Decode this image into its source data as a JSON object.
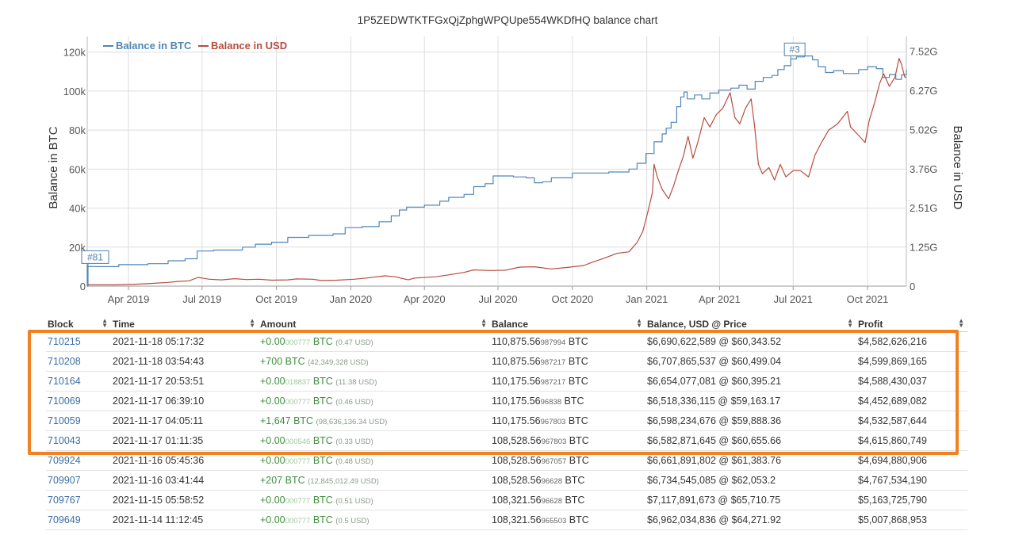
{
  "title": "1P5ZEDWTKTFGxQjZphgWPQUpe554WKDfHQ balance chart",
  "chart_data": {
    "type": "line",
    "title": "1P5ZEDWTKTFGxQjZphgWPQUpe554WKDfHQ balance chart",
    "legend": {
      "placement": "top-left",
      "btc_label": "Balance in BTC",
      "usd_label": "Balance in USD"
    },
    "x_ticks": [
      "Apr 2019",
      "Jul 2019",
      "Oct 2019",
      "Jan 2020",
      "Apr 2020",
      "Jul 2020",
      "Oct 2020",
      "Jan 2021",
      "Apr 2021",
      "Jul 2021",
      "Oct 2021"
    ],
    "x_range": [
      "2019-02-09",
      "2021-11-18"
    ],
    "y_left": {
      "label": "Balance in BTC",
      "range": [
        0,
        128000
      ],
      "ticks": [
        "0",
        "20k",
        "40k",
        "60k",
        "80k",
        "100k",
        "120k"
      ]
    },
    "y_right": {
      "label": "Balance in USD",
      "range": [
        0,
        8.0
      ],
      "unit": "G",
      "ticks": [
        "0",
        "1.25G",
        "2.51G",
        "3.76G",
        "5.02G",
        "6.27G",
        "7.52G"
      ]
    },
    "grid": true,
    "flags": [
      {
        "label": "#81",
        "date": "2019-02-10",
        "series": "btc"
      },
      {
        "label": "#3",
        "date": "2021-06-28",
        "series": "btc"
      }
    ],
    "series": [
      {
        "name": "Balance in BTC",
        "color": "#4f86b8",
        "axis": "left",
        "points": [
          [
            "2019-02-09",
            11000
          ],
          [
            "2019-02-09",
            0
          ],
          [
            "2019-02-10",
            0
          ],
          [
            "2019-02-10",
            10000
          ],
          [
            "2019-03-20",
            11000
          ],
          [
            "2019-04-25",
            11500
          ],
          [
            "2019-05-20",
            13000
          ],
          [
            "2019-06-10",
            14000
          ],
          [
            "2019-06-25",
            18000
          ],
          [
            "2019-07-15",
            18500
          ],
          [
            "2019-08-20",
            20000
          ],
          [
            "2019-09-05",
            21500
          ],
          [
            "2019-09-25",
            22500
          ],
          [
            "2019-10-15",
            25000
          ],
          [
            "2019-11-10",
            26000
          ],
          [
            "2019-12-10",
            26800
          ],
          [
            "2019-12-25",
            30000
          ],
          [
            "2020-01-15",
            30500
          ],
          [
            "2020-02-05",
            33000
          ],
          [
            "2020-02-20",
            36000
          ],
          [
            "2020-03-01",
            39000
          ],
          [
            "2020-03-10",
            40500
          ],
          [
            "2020-04-01",
            41500
          ],
          [
            "2020-04-20",
            43500
          ],
          [
            "2020-05-01",
            45500
          ],
          [
            "2020-05-20",
            47000
          ],
          [
            "2020-06-01",
            51000
          ],
          [
            "2020-06-15",
            52500
          ],
          [
            "2020-06-25",
            56500
          ],
          [
            "2020-07-20",
            56000
          ],
          [
            "2020-08-05",
            55500
          ],
          [
            "2020-08-15",
            53000
          ],
          [
            "2020-08-25",
            53500
          ],
          [
            "2020-09-05",
            55500
          ],
          [
            "2020-10-01",
            58000
          ],
          [
            "2020-11-15",
            58500
          ],
          [
            "2020-12-10",
            60000
          ],
          [
            "2020-12-20",
            63000
          ],
          [
            "2020-12-31",
            68000
          ],
          [
            "2021-01-10",
            74000
          ],
          [
            "2021-01-20",
            78000
          ],
          [
            "2021-01-25",
            81000
          ],
          [
            "2021-01-31",
            84000
          ],
          [
            "2021-02-07",
            92000
          ],
          [
            "2021-02-12",
            97000
          ],
          [
            "2021-02-16",
            99500
          ],
          [
            "2021-02-20",
            96000
          ],
          [
            "2021-03-01",
            98000
          ],
          [
            "2021-03-10",
            96000
          ],
          [
            "2021-03-20",
            99000
          ],
          [
            "2021-03-31",
            100500
          ],
          [
            "2021-04-15",
            101500
          ],
          [
            "2021-04-25",
            103000
          ],
          [
            "2021-05-05",
            101000
          ],
          [
            "2021-05-15",
            105000
          ],
          [
            "2021-05-25",
            107000
          ],
          [
            "2021-06-05",
            108000
          ],
          [
            "2021-06-12",
            111000
          ],
          [
            "2021-06-20",
            113000
          ],
          [
            "2021-06-28",
            116500
          ],
          [
            "2021-07-05",
            117500
          ],
          [
            "2021-07-15",
            118000
          ],
          [
            "2021-07-25",
            116000
          ],
          [
            "2021-08-01",
            112500
          ],
          [
            "2021-08-10",
            109500
          ],
          [
            "2021-08-20",
            110500
          ],
          [
            "2021-09-01",
            109000
          ],
          [
            "2021-09-20",
            111000
          ],
          [
            "2021-10-01",
            112500
          ],
          [
            "2021-10-12",
            111500
          ],
          [
            "2021-10-20",
            107000
          ],
          [
            "2021-10-28",
            108500
          ],
          [
            "2021-11-05",
            106000
          ],
          [
            "2021-11-12",
            108300
          ],
          [
            "2021-11-18",
            110900
          ]
        ]
      },
      {
        "name": "Balance in USD",
        "color": "#b64c3f",
        "axis": "right",
        "points": [
          [
            "2019-02-10",
            0.04
          ],
          [
            "2019-03-15",
            0.04
          ],
          [
            "2019-04-10",
            0.06
          ],
          [
            "2019-05-01",
            0.09
          ],
          [
            "2019-05-20",
            0.12
          ],
          [
            "2019-06-01",
            0.15
          ],
          [
            "2019-06-15",
            0.17
          ],
          [
            "2019-06-26",
            0.28
          ],
          [
            "2019-07-10",
            0.22
          ],
          [
            "2019-07-25",
            0.2
          ],
          [
            "2019-08-10",
            0.24
          ],
          [
            "2019-08-25",
            0.21
          ],
          [
            "2019-09-10",
            0.22
          ],
          [
            "2019-09-25",
            0.19
          ],
          [
            "2019-10-15",
            0.2
          ],
          [
            "2019-10-26",
            0.23
          ],
          [
            "2019-11-15",
            0.22
          ],
          [
            "2019-11-25",
            0.18
          ],
          [
            "2019-12-15",
            0.19
          ],
          [
            "2020-01-05",
            0.22
          ],
          [
            "2020-01-20",
            0.26
          ],
          [
            "2020-02-12",
            0.33
          ],
          [
            "2020-02-25",
            0.3
          ],
          [
            "2020-03-12",
            0.2
          ],
          [
            "2020-03-20",
            0.26
          ],
          [
            "2020-04-15",
            0.3
          ],
          [
            "2020-05-01",
            0.36
          ],
          [
            "2020-05-20",
            0.44
          ],
          [
            "2020-06-01",
            0.52
          ],
          [
            "2020-06-20",
            0.5
          ],
          [
            "2020-07-10",
            0.51
          ],
          [
            "2020-07-28",
            0.61
          ],
          [
            "2020-08-15",
            0.62
          ],
          [
            "2020-09-05",
            0.55
          ],
          [
            "2020-09-25",
            0.6
          ],
          [
            "2020-10-15",
            0.66
          ],
          [
            "2020-10-25",
            0.76
          ],
          [
            "2020-11-10",
            0.9
          ],
          [
            "2020-11-25",
            1.05
          ],
          [
            "2020-12-10",
            1.1
          ],
          [
            "2020-12-20",
            1.4
          ],
          [
            "2020-12-27",
            1.75
          ],
          [
            "2021-01-02",
            2.35
          ],
          [
            "2021-01-08",
            3.0
          ],
          [
            "2021-01-10",
            3.9
          ],
          [
            "2021-01-14",
            3.5
          ],
          [
            "2021-01-20",
            3.1
          ],
          [
            "2021-01-28",
            2.8
          ],
          [
            "2021-02-03",
            3.2
          ],
          [
            "2021-02-09",
            3.7
          ],
          [
            "2021-02-15",
            4.15
          ],
          [
            "2021-02-21",
            4.8
          ],
          [
            "2021-02-27",
            4.1
          ],
          [
            "2021-03-05",
            4.6
          ],
          [
            "2021-03-13",
            5.4
          ],
          [
            "2021-03-20",
            5.1
          ],
          [
            "2021-03-28",
            5.5
          ],
          [
            "2021-04-05",
            5.7
          ],
          [
            "2021-04-14",
            6.2
          ],
          [
            "2021-04-20",
            5.4
          ],
          [
            "2021-04-26",
            5.2
          ],
          [
            "2021-05-03",
            5.7
          ],
          [
            "2021-05-10",
            6.0
          ],
          [
            "2021-05-14",
            5.2
          ],
          [
            "2021-05-19",
            3.9
          ],
          [
            "2021-05-24",
            3.6
          ],
          [
            "2021-06-01",
            3.8
          ],
          [
            "2021-06-08",
            3.4
          ],
          [
            "2021-06-15",
            3.9
          ],
          [
            "2021-06-22",
            3.5
          ],
          [
            "2021-07-01",
            3.7
          ],
          [
            "2021-07-10",
            3.7
          ],
          [
            "2021-07-20",
            3.5
          ],
          [
            "2021-07-28",
            4.2
          ],
          [
            "2021-08-05",
            4.6
          ],
          [
            "2021-08-14",
            5.0
          ],
          [
            "2021-08-25",
            5.2
          ],
          [
            "2021-09-06",
            5.6
          ],
          [
            "2021-09-10",
            5.1
          ],
          [
            "2021-09-21",
            4.8
          ],
          [
            "2021-09-28",
            4.6
          ],
          [
            "2021-10-03",
            5.3
          ],
          [
            "2021-10-10",
            5.9
          ],
          [
            "2021-10-16",
            6.5
          ],
          [
            "2021-10-21",
            6.8
          ],
          [
            "2021-10-28",
            6.4
          ],
          [
            "2021-11-04",
            6.7
          ],
          [
            "2021-11-09",
            7.3
          ],
          [
            "2021-11-12",
            7.1
          ],
          [
            "2021-11-16",
            6.7
          ],
          [
            "2021-11-18",
            6.69
          ]
        ]
      }
    ]
  },
  "table": {
    "columns": [
      "Block",
      "Time",
      "Amount",
      "Balance",
      "Balance, USD @ Price",
      "Profit"
    ],
    "rows": [
      {
        "block": "710215",
        "time": "2021-11-18 05:17:32",
        "amt_main": "+0.00",
        "amt_dim": "000777",
        "amt_unit": " BTC ",
        "amt_usd": "(0.47 USD)",
        "bal_main": "110,875.56",
        "bal_dim": "987994",
        "bal_unit": " BTC",
        "usd": "$6,690,622,589 @ $60,343.52",
        "profit": "$4,582,626,216"
      },
      {
        "block": "710208",
        "time": "2021-11-18 03:54:43",
        "amt_main": "+700",
        "amt_dim": "",
        "amt_unit": " BTC ",
        "amt_usd": "(42,349,328 USD)",
        "bal_main": "110,875.56",
        "bal_dim": "987217",
        "bal_unit": " BTC",
        "usd": "$6,707,865,537 @ $60,499.04",
        "profit": "$4,599,869,165"
      },
      {
        "block": "710164",
        "time": "2021-11-17 20:53:51",
        "amt_main": "+0.00",
        "amt_dim": "018837",
        "amt_unit": " BTC ",
        "amt_usd": "(11.38 USD)",
        "bal_main": "110,175.56",
        "bal_dim": "987217",
        "bal_unit": " BTC",
        "usd": "$6,654,077,081 @ $60,395.21",
        "profit": "$4,588,430,037"
      },
      {
        "block": "710069",
        "time": "2021-11-17 06:39:10",
        "amt_main": "+0.00",
        "amt_dim": "000777",
        "amt_unit": " BTC ",
        "amt_usd": "(0.46 USD)",
        "bal_main": "110,175.56",
        "bal_dim": "96838",
        "bal_unit": " BTC",
        "usd": "$6,518,336,115 @ $59,163.17",
        "profit": "$4,452,689,082"
      },
      {
        "block": "710059",
        "time": "2021-11-17 04:05:11",
        "amt_main": "+1,647",
        "amt_dim": "",
        "amt_unit": " BTC ",
        "amt_usd": "(98,636,136.34 USD)",
        "bal_main": "110,175.56",
        "bal_dim": "967803",
        "bal_unit": " BTC",
        "usd": "$6,598,234,676 @ $59,888.36",
        "profit": "$4,532,587,644"
      },
      {
        "block": "710043",
        "time": "2021-11-17 01:11:35",
        "amt_main": "+0.00",
        "amt_dim": "000546",
        "amt_unit": " BTC ",
        "amt_usd": "(0.33 USD)",
        "bal_main": "108,528.56",
        "bal_dim": "967803",
        "bal_unit": " BTC",
        "usd": "$6,582,871,645 @ $60,655.66",
        "profit": "$4,615,860,749"
      },
      {
        "block": "709924",
        "time": "2021-11-16 05:45:36",
        "amt_main": "+0.00",
        "amt_dim": "000777",
        "amt_unit": " BTC ",
        "amt_usd": "(0.48 USD)",
        "bal_main": "108,528.56",
        "bal_dim": "967057",
        "bal_unit": " BTC",
        "usd": "$6,661,891,802 @ $61,383.76",
        "profit": "$4,694,880,906"
      },
      {
        "block": "709907",
        "time": "2021-11-16 03:41:44",
        "amt_main": "+207",
        "amt_dim": "",
        "amt_unit": " BTC ",
        "amt_usd": "(12,845,012.49 USD)",
        "bal_main": "108,528.56",
        "bal_dim": "96628",
        "bal_unit": " BTC",
        "usd": "$6,734,545,085 @ $62,053.2",
        "profit": "$4,767,534,190"
      },
      {
        "block": "709767",
        "time": "2021-11-15 05:58:52",
        "amt_main": "+0.00",
        "amt_dim": "000777",
        "amt_unit": " BTC ",
        "amt_usd": "(0.51 USD)",
        "bal_main": "108,321.56",
        "bal_dim": "96628",
        "bal_unit": " BTC",
        "usd": "$7,117,891,673 @ $65,710.75",
        "profit": "$5,163,725,790"
      },
      {
        "block": "709649",
        "time": "2021-11-14 11:12:45",
        "amt_main": "+0.00",
        "amt_dim": "000777",
        "amt_unit": " BTC ",
        "amt_usd": "(0.5 USD)",
        "bal_main": "108,321.56",
        "bal_dim": "965503",
        "bal_unit": " BTC",
        "usd": "$6,962,034,836 @ $64,271.92",
        "profit": "$5,007,868,953"
      }
    ]
  },
  "highlight": {
    "color": "#f08223",
    "rows": [
      "710215",
      "710208",
      "710164",
      "710069",
      "710059",
      "710043"
    ]
  }
}
